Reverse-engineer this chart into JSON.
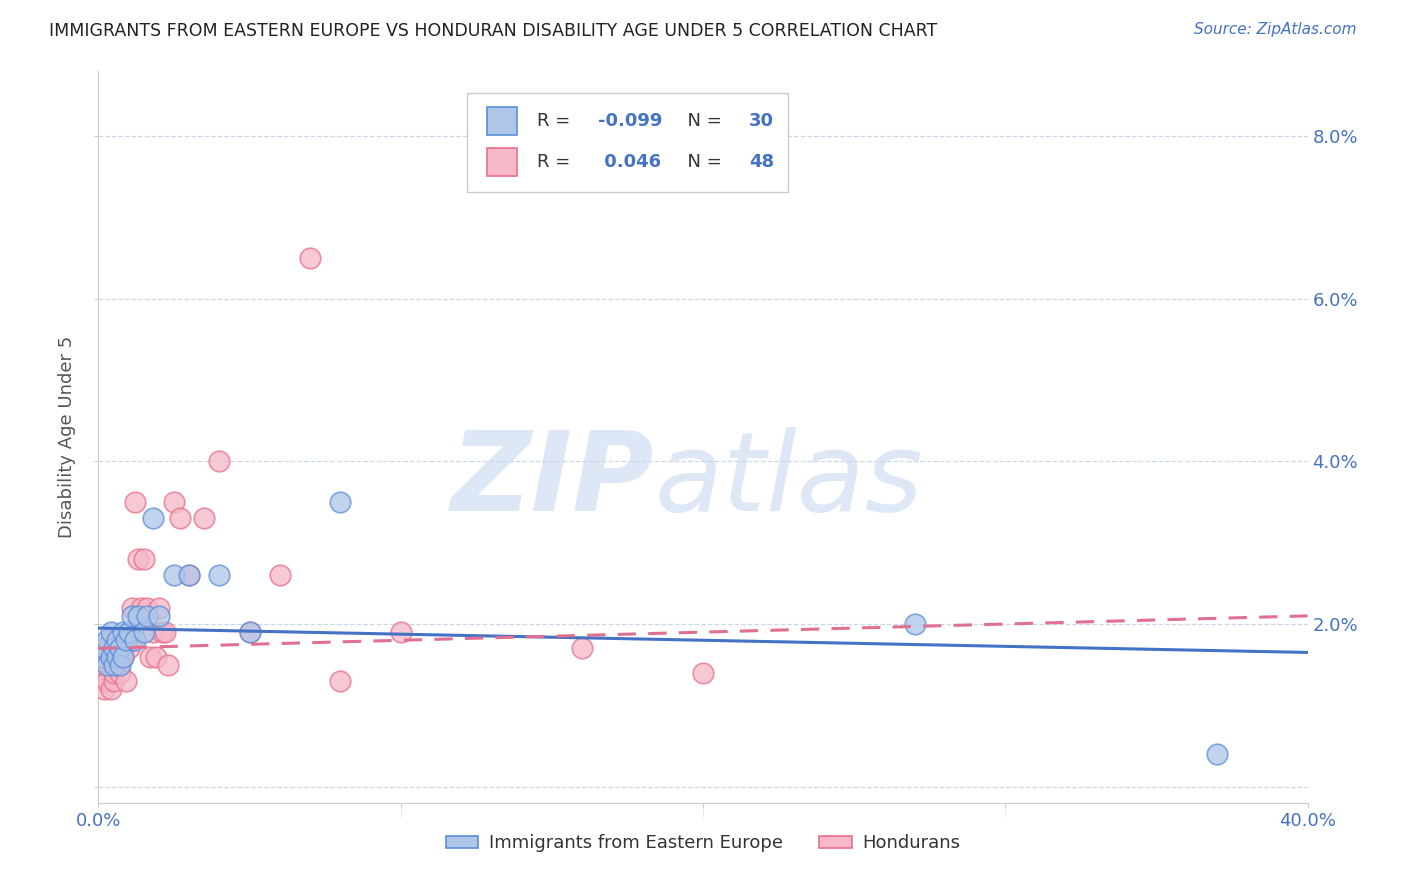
{
  "title": "IMMIGRANTS FROM EASTERN EUROPE VS HONDURAN DISABILITY AGE UNDER 5 CORRELATION CHART",
  "source": "Source: ZipAtlas.com",
  "ylabel": "Disability Age Under 5",
  "xlim": [
    0.0,
    0.4
  ],
  "ylim": [
    -0.002,
    0.088
  ],
  "xticks": [
    0.0,
    0.1,
    0.2,
    0.3,
    0.4
  ],
  "yticks": [
    0.0,
    0.02,
    0.04,
    0.06,
    0.08
  ],
  "xticklabels": [
    "0.0%",
    "",
    "",
    "",
    "40.0%"
  ],
  "yticklabels": [
    "",
    "2.0%",
    "4.0%",
    "6.0%",
    "8.0%"
  ],
  "blue_R": "-0.099",
  "blue_N": "30",
  "pink_R": "0.046",
  "pink_N": "48",
  "blue_fill": "#aec6e8",
  "pink_fill": "#f5b8c8",
  "blue_edge": "#5b8dd9",
  "pink_edge": "#e8708a",
  "blue_line": "#4472c4",
  "pink_line": "#e07090",
  "blue_points_x": [
    0.001,
    0.002,
    0.003,
    0.003,
    0.004,
    0.004,
    0.005,
    0.005,
    0.006,
    0.006,
    0.007,
    0.007,
    0.008,
    0.008,
    0.009,
    0.01,
    0.011,
    0.012,
    0.013,
    0.015,
    0.016,
    0.018,
    0.02,
    0.025,
    0.03,
    0.04,
    0.05,
    0.08,
    0.27,
    0.37
  ],
  "blue_points_y": [
    0.016,
    0.017,
    0.015,
    0.018,
    0.016,
    0.019,
    0.017,
    0.015,
    0.018,
    0.016,
    0.017,
    0.015,
    0.019,
    0.016,
    0.018,
    0.019,
    0.021,
    0.018,
    0.021,
    0.019,
    0.021,
    0.033,
    0.021,
    0.026,
    0.026,
    0.026,
    0.019,
    0.035,
    0.02,
    0.004
  ],
  "pink_points_x": [
    0.001,
    0.001,
    0.002,
    0.002,
    0.003,
    0.003,
    0.004,
    0.004,
    0.004,
    0.005,
    0.005,
    0.005,
    0.006,
    0.006,
    0.007,
    0.007,
    0.008,
    0.008,
    0.009,
    0.009,
    0.01,
    0.01,
    0.011,
    0.011,
    0.012,
    0.013,
    0.014,
    0.015,
    0.016,
    0.017,
    0.018,
    0.019,
    0.02,
    0.021,
    0.022,
    0.023,
    0.025,
    0.027,
    0.03,
    0.035,
    0.04,
    0.05,
    0.06,
    0.07,
    0.08,
    0.1,
    0.16,
    0.2
  ],
  "pink_points_y": [
    0.013,
    0.015,
    0.012,
    0.016,
    0.013,
    0.017,
    0.012,
    0.015,
    0.018,
    0.013,
    0.016,
    0.014,
    0.017,
    0.015,
    0.016,
    0.014,
    0.018,
    0.016,
    0.018,
    0.013,
    0.019,
    0.017,
    0.022,
    0.018,
    0.035,
    0.028,
    0.022,
    0.028,
    0.022,
    0.016,
    0.019,
    0.016,
    0.022,
    0.019,
    0.019,
    0.015,
    0.035,
    0.033,
    0.026,
    0.033,
    0.04,
    0.019,
    0.026,
    0.065,
    0.013,
    0.019,
    0.017,
    0.014
  ],
  "blue_line_x0": 0.0,
  "blue_line_y0": 0.0195,
  "blue_line_x1": 0.4,
  "blue_line_y1": 0.0165,
  "pink_line_x0": 0.0,
  "pink_line_y0": 0.017,
  "pink_line_x1": 0.4,
  "pink_line_y1": 0.021
}
